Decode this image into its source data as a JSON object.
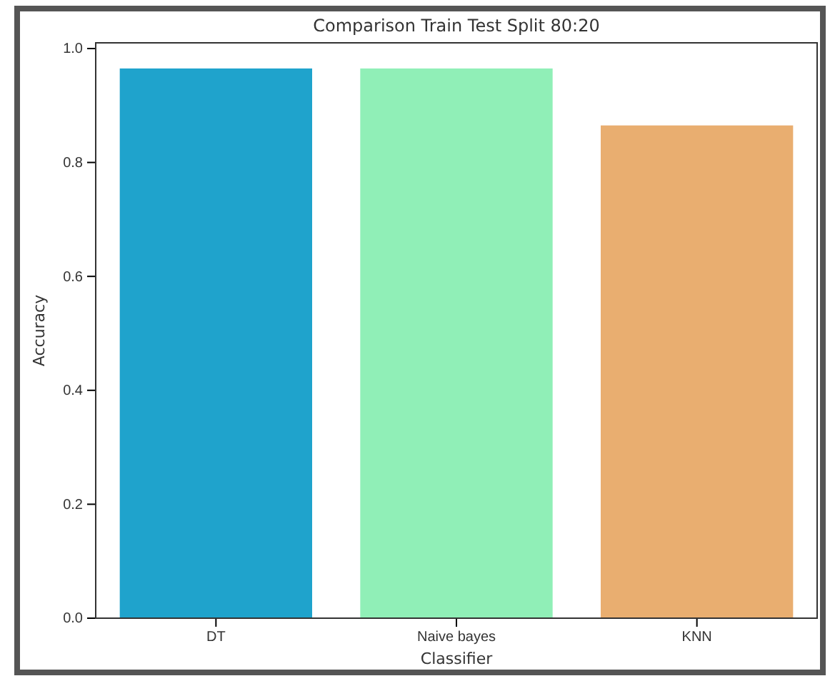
{
  "chart_data": {
    "type": "bar",
    "title": "Comparison Train Test Split 80:20",
    "xlabel": "Classifier",
    "ylabel": "Accuracy",
    "categories": [
      "DT",
      "Naive bayes",
      "KNN"
    ],
    "values": [
      0.965,
      0.965,
      0.865
    ],
    "colors": [
      "#1fa3cc",
      "#90efb7",
      "#e9ae70"
    ],
    "ylim": [
      0,
      1.01
    ],
    "yticks": [
      {
        "value": 0,
        "label": "0.0"
      },
      0.2,
      0.4,
      0.6,
      0.8,
      {
        "value": 1,
        "label": "1.0"
      }
    ],
    "grid": false
  }
}
